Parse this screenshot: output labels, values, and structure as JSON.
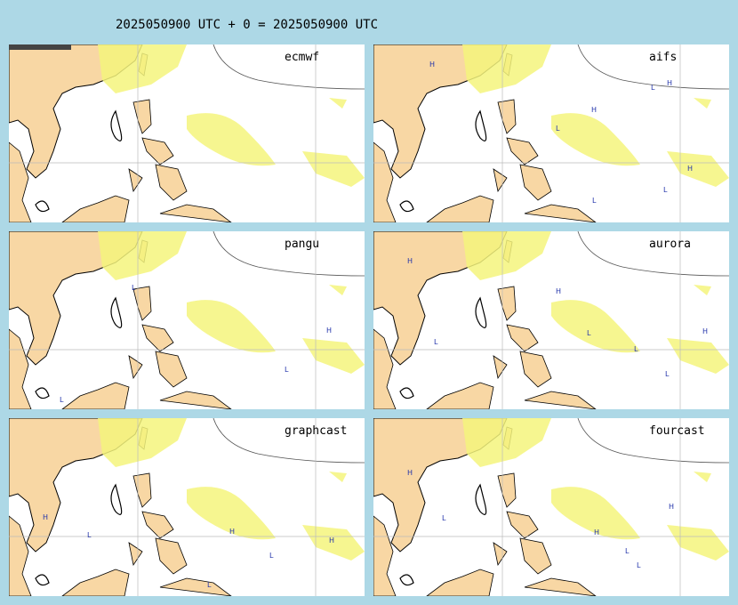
{
  "header": {
    "title": "2025050900 UTC + 0 = 2025050900 UTC"
  },
  "panels": [
    {
      "label": "ecmwf",
      "centers": []
    },
    {
      "label": "aifs",
      "centers": [
        "H",
        "H",
        "L",
        "H",
        "L",
        "H",
        "L",
        "L"
      ]
    },
    {
      "label": "pangu",
      "centers": [
        "L",
        "H",
        "L",
        "L"
      ]
    },
    {
      "label": "aurora",
      "centers": [
        "H",
        "H",
        "L",
        "L",
        "H",
        "L",
        "L"
      ]
    },
    {
      "label": "graphcast",
      "centers": [
        "H",
        "L",
        "H",
        "L",
        "H",
        "L"
      ]
    },
    {
      "label": "fourcast",
      "centers": [
        "H",
        "L",
        "H",
        "L",
        "L",
        "H"
      ]
    }
  ]
}
